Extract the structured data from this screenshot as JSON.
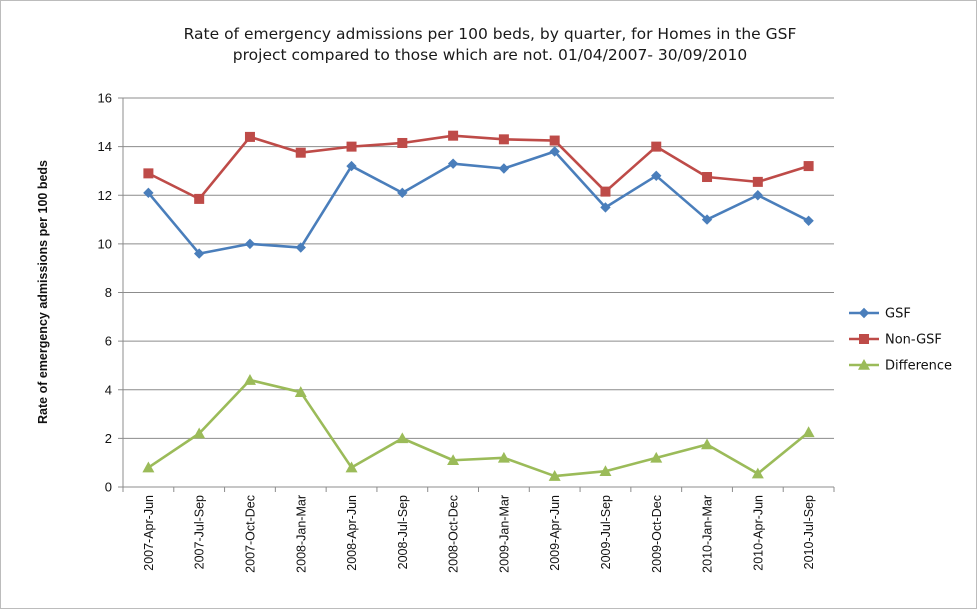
{
  "chart_data": {
    "type": "line",
    "title_lines": [
      "Rate of emergency admissions per 100 beds, by quarter, for Homes in the GSF",
      "project compared to those which are not.  01/04/2007- 30/09/2010"
    ],
    "xlabel": "",
    "ylabel": "Rate of emergency admissions per 100 beds",
    "ylim": [
      0,
      16
    ],
    "yticks": [
      0,
      2,
      4,
      6,
      8,
      10,
      12,
      14,
      16
    ],
    "grid": "horizontal",
    "legend_position": "right",
    "categories": [
      "2007-Apr-Jun",
      "2007-Jul-Sep",
      "2007-Oct-Dec",
      "2008-Jan-Mar",
      "2008-Apr-Jun",
      "2008-Jul-Sep",
      "2008-Oct-Dec",
      "2009-Jan-Mar",
      "2009-Apr-Jun",
      "2009-Jul-Sep",
      "2009-Oct-Dec",
      "2010-Jan-Mar",
      "2010-Apr-Jun",
      "2010-Jul-Sep"
    ],
    "series": [
      {
        "name": "GSF",
        "color": "#4a7ebb",
        "marker": "diamond",
        "values": [
          12.1,
          9.6,
          10.0,
          9.85,
          13.2,
          12.1,
          13.3,
          13.1,
          13.8,
          11.5,
          12.8,
          11.0,
          12.0,
          10.95
        ]
      },
      {
        "name": "Non-GSF",
        "color": "#be4b48",
        "marker": "square",
        "values": [
          12.9,
          11.85,
          14.4,
          13.75,
          14.0,
          14.15,
          14.45,
          14.3,
          14.25,
          12.15,
          14.0,
          12.75,
          12.55,
          13.2
        ]
      },
      {
        "name": "Difference",
        "color": "#9bbb59",
        "marker": "triangle",
        "values": [
          0.8,
          2.2,
          4.4,
          3.9,
          0.8,
          2.0,
          1.1,
          1.2,
          0.45,
          0.65,
          1.2,
          1.75,
          0.55,
          2.25
        ]
      }
    ]
  }
}
